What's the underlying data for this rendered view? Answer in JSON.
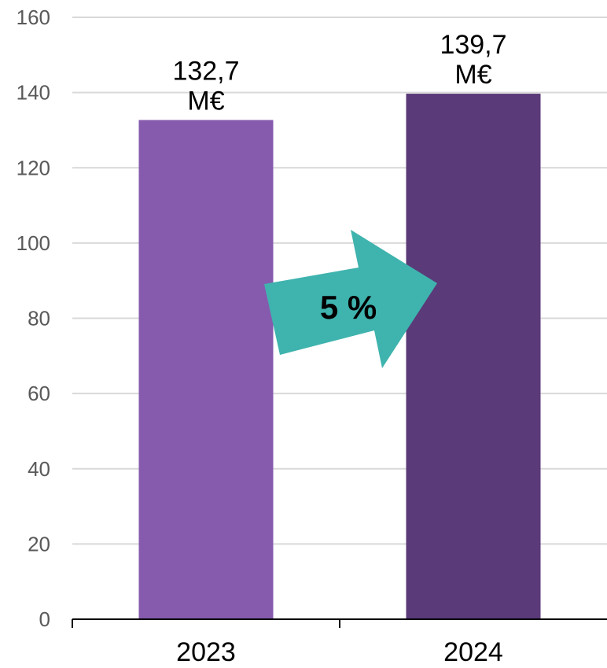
{
  "chart_data": {
    "type": "bar",
    "categories": [
      "2023",
      "2024"
    ],
    "values": [
      132.7,
      139.7
    ],
    "data_labels": [
      [
        "132,7",
        "M€"
      ],
      [
        "139,7",
        "M€"
      ]
    ],
    "y_ticks": [
      "0",
      "20",
      "40",
      "60",
      "80",
      "100",
      "120",
      "140",
      "160"
    ],
    "ylim": [
      0,
      160
    ],
    "grid": true,
    "bar_colors": [
      "#865BAE",
      "#5A3A78"
    ],
    "annotation": {
      "text": "5 %",
      "shape": "arrow-right",
      "color": "#3FB3AE"
    }
  },
  "colors": {
    "gridline": "#D9D9D9",
    "axis": "#000000"
  }
}
